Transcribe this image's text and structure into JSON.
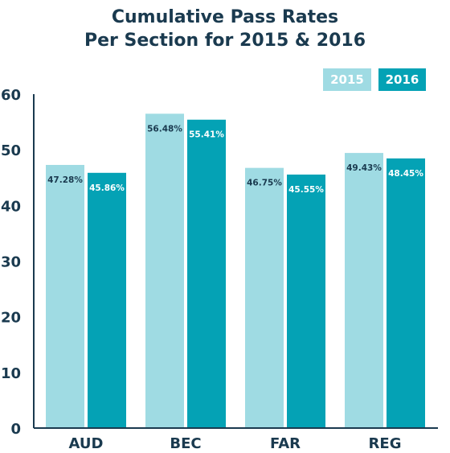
{
  "chart_data": {
    "type": "bar",
    "title": "Cumulative Pass Rates",
    "subtitle": "Per Section for 2015 & 2016",
    "categories": [
      "AUD",
      "BEC",
      "FAR",
      "REG"
    ],
    "series": [
      {
        "name": "2015",
        "values": [
          47.28,
          56.48,
          46.75,
          49.43
        ],
        "labels": [
          "47.28%",
          "56.48%",
          "46.75%",
          "49.43%"
        ],
        "color": "#9fdbe3"
      },
      {
        "name": "2016",
        "values": [
          45.86,
          55.41,
          45.55,
          48.45
        ],
        "labels": [
          "45.86%",
          "55.41%",
          "45.55%",
          "48.45%"
        ],
        "color": "#04a2b5"
      }
    ],
    "ylim": [
      0,
      60
    ],
    "yticks": [
      "0",
      "10",
      "20",
      "30",
      "40",
      "50",
      "60"
    ],
    "xlabel": "",
    "ylabel": "",
    "grid": false,
    "legend_position": "top-right"
  },
  "colors": {
    "axis": "#1a3a4f",
    "text": "#1a3a4f",
    "legend_text": "#ffffff"
  }
}
